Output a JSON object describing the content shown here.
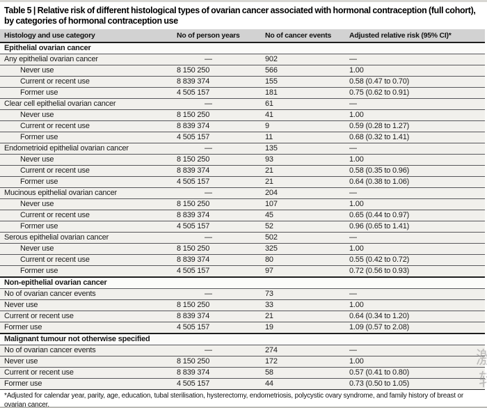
{
  "title": "Table 5 | Relative risk of different histological types of ovarian cancer associated with hormonal contraception (full cohort), by categories of hormonal contraception use",
  "columns": [
    "Histology and use category",
    "No of person years",
    "No of cancer events",
    "Adjusted relative risk (95% CI)*"
  ],
  "rows": [
    {
      "type": "section",
      "label": "Epithelial ovarian cancer"
    },
    {
      "type": "data",
      "label": "Any epithelial ovarian cancer",
      "indent": 0,
      "person_years": "—",
      "events": "902",
      "rr": "—"
    },
    {
      "type": "data",
      "label": "Never use",
      "indent": 1,
      "person_years": "8 150 250",
      "events": "566",
      "rr": "1.00"
    },
    {
      "type": "data",
      "label": "Current or recent use",
      "indent": 1,
      "person_years": "8 839 374",
      "events": "155",
      "rr": "0.58 (0.47 to 0.70)"
    },
    {
      "type": "data",
      "label": "Former use",
      "indent": 1,
      "person_years": "4 505 157",
      "events": "181",
      "rr": "0.75 (0.62 to 0.91)"
    },
    {
      "type": "data",
      "label": "Clear cell epithelial ovarian cancer",
      "indent": 0,
      "person_years": "—",
      "events": "61",
      "rr": "—"
    },
    {
      "type": "data",
      "label": "Never use",
      "indent": 1,
      "person_years": "8 150 250",
      "events": "41",
      "rr": "1.00"
    },
    {
      "type": "data",
      "label": "Current or recent use",
      "indent": 1,
      "person_years": "8 839 374",
      "events": "9",
      "rr": "0.59 (0.28 to 1.27)"
    },
    {
      "type": "data",
      "label": "Former use",
      "indent": 1,
      "person_years": "4 505 157",
      "events": "11",
      "rr": "0.68 (0.32 to 1.41)"
    },
    {
      "type": "data",
      "label": "Endometrioid epithelial ovarian cancer",
      "indent": 0,
      "person_years": "—",
      "events": "135",
      "rr": "—"
    },
    {
      "type": "data",
      "label": "Never use",
      "indent": 1,
      "person_years": "8 150 250",
      "events": "93",
      "rr": "1.00"
    },
    {
      "type": "data",
      "label": "Current or recent use",
      "indent": 1,
      "person_years": "8 839 374",
      "events": "21",
      "rr": "0.58 (0.35 to 0.96)"
    },
    {
      "type": "data",
      "label": "Former use",
      "indent": 1,
      "person_years": "4 505 157",
      "events": "21",
      "rr": "0.64 (0.38 to 1.06)"
    },
    {
      "type": "data",
      "label": "Mucinous epithelial ovarian cancer",
      "indent": 0,
      "person_years": "—",
      "events": "204",
      "rr": "—"
    },
    {
      "type": "data",
      "label": "Never use",
      "indent": 1,
      "person_years": "8 150 250",
      "events": "107",
      "rr": "1.00"
    },
    {
      "type": "data",
      "label": "Current or recent use",
      "indent": 1,
      "person_years": "8 839 374",
      "events": "45",
      "rr": "0.65 (0.44 to 0.97)"
    },
    {
      "type": "data",
      "label": "Former use",
      "indent": 1,
      "person_years": "4 505 157",
      "events": "52",
      "rr": "0.96 (0.65 to 1.41)"
    },
    {
      "type": "data",
      "label": "Serous epithelial ovarian cancer",
      "indent": 0,
      "person_years": "—",
      "events": "502",
      "rr": "—"
    },
    {
      "type": "data",
      "label": "Never use",
      "indent": 1,
      "person_years": "8 150 250",
      "events": "325",
      "rr": "1.00"
    },
    {
      "type": "data",
      "label": "Current or recent use",
      "indent": 1,
      "person_years": "8 839 374",
      "events": "80",
      "rr": "0.55 (0.42 to 0.72)"
    },
    {
      "type": "data",
      "label": "Former use",
      "indent": 1,
      "person_years": "4 505 157",
      "events": "97",
      "rr": "0.72 (0.56 to 0.93)"
    },
    {
      "type": "section",
      "label": "Non-epithelial ovarian cancer"
    },
    {
      "type": "data",
      "label": "No of ovarian cancer events",
      "indent": 0,
      "person_years": "—",
      "events": "73",
      "rr": "—"
    },
    {
      "type": "data",
      "label": "Never use",
      "indent": 0,
      "person_years": "8 150 250",
      "events": "33",
      "rr": "1.00"
    },
    {
      "type": "data",
      "label": "Current or recent use",
      "indent": 0,
      "person_years": "8 839 374",
      "events": "21",
      "rr": "0.64 (0.34 to 1.20)"
    },
    {
      "type": "data",
      "label": "Former use",
      "indent": 0,
      "person_years": "4 505 157",
      "events": "19",
      "rr": "1.09 (0.57 to 2.08)"
    },
    {
      "type": "section",
      "label": "Malignant tumour not otherwise specified"
    },
    {
      "type": "data",
      "label": "No of ovarian cancer events",
      "indent": 0,
      "person_years": "—",
      "events": "274",
      "rr": "—"
    },
    {
      "type": "data",
      "label": "Never use",
      "indent": 0,
      "person_years": "8 150 250",
      "events": "172",
      "rr": "1.00"
    },
    {
      "type": "data",
      "label": "Current or recent use",
      "indent": 0,
      "person_years": "8 839 374",
      "events": "58",
      "rr": "0.57 (0.41 to 0.80)"
    },
    {
      "type": "data",
      "label": "Former use",
      "indent": 0,
      "person_years": "4 505 157",
      "events": "44",
      "rr": "0.73 (0.50 to 1.05)"
    }
  ],
  "footnote": "*Adjusted for calendar year, parity, age, education, tubal sterilisation, hysterectomy, endometriosis, polycystic ovary syndrome, and family history of breast or ovarian cancer.",
  "watermark": [
    "激",
    "转"
  ],
  "colors": {
    "header_band": "#d2d2d2",
    "row_background": "#f1f0ec",
    "row_rule": "#56565a",
    "strong_rule": "#1d1d1d"
  }
}
